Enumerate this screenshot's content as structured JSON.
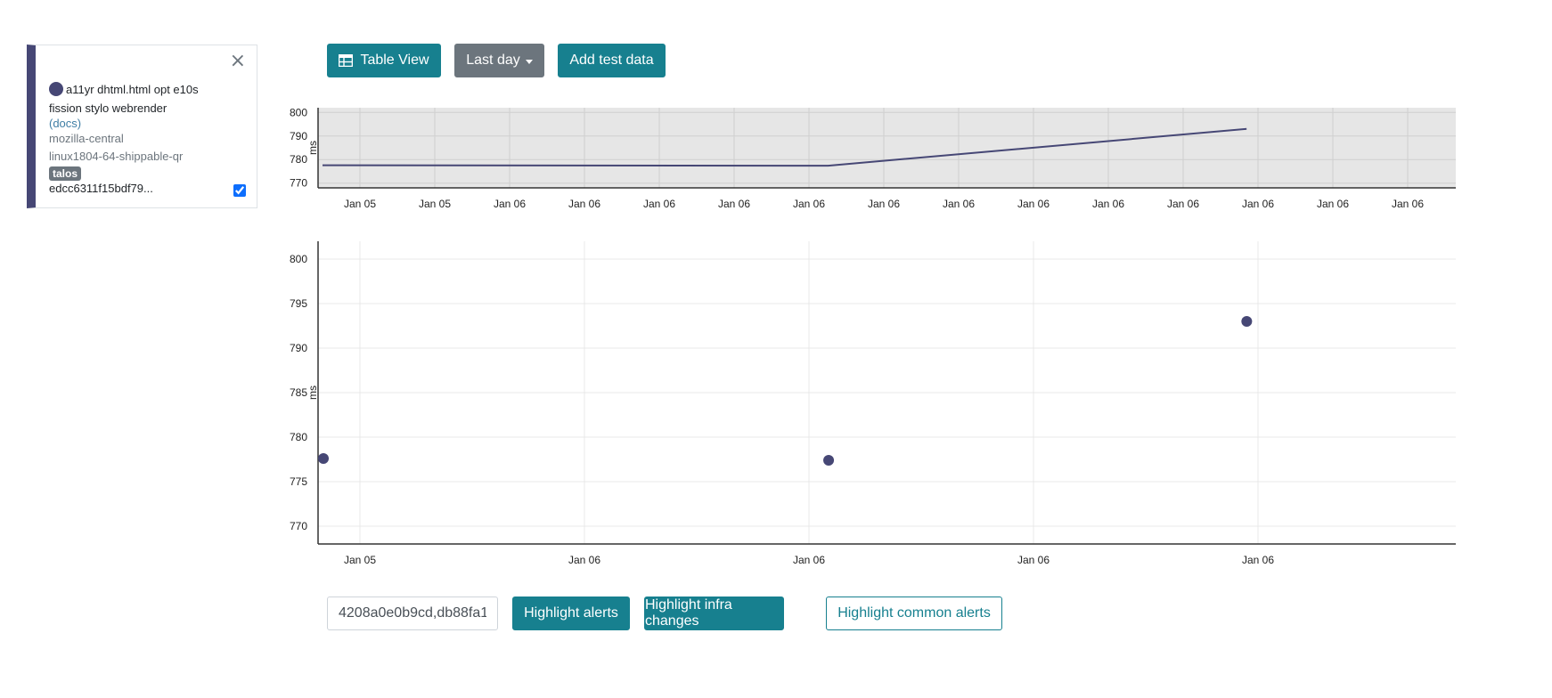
{
  "colors": {
    "series": "#464775",
    "teal": "#17808f",
    "gray": "#6c757d",
    "badge": "#6c757d"
  },
  "legend": {
    "close_icon": "×",
    "test_name": "a11yr dhtml.html opt e10s",
    "options": "fission stylo webrender",
    "docs_label": "(docs)",
    "repository": "mozilla-central",
    "platform": "linux1804-64-shippable-qr",
    "framework_badge": "talos",
    "signature": "edcc6311f15bdf79...",
    "checked": true
  },
  "toolbar": {
    "table_view_label": "Table View",
    "table_icon": "table-icon",
    "time_range_label": "Last day",
    "add_test_data_label": "Add test data"
  },
  "overview_chart": {
    "ylabel": "ms",
    "y_ticks": [
      770,
      780,
      790,
      800
    ],
    "ylim": [
      768,
      802
    ],
    "x_ticks": [
      "Jan 05",
      "Jan 05",
      "Jan 06",
      "Jan 06",
      "Jan 06",
      "Jan 06",
      "Jan 06",
      "Jan 06",
      "Jan 06",
      "Jan 06",
      "Jan 06",
      "Jan 06",
      "Jan 06",
      "Jan 06",
      "Jan 06"
    ]
  },
  "chart_data": {
    "type": "scatter",
    "ylabel": "ms",
    "ylim": [
      768,
      802
    ],
    "y_ticks": [
      770,
      775,
      780,
      785,
      790,
      795,
      800
    ],
    "x_ticks": [
      "Jan 05",
      "Jan 06",
      "Jan 06",
      "Jan 06",
      "Jan 06"
    ],
    "series": [
      {
        "points": [
          {
            "x": 0.0,
            "y": 777.6
          },
          {
            "x": 5.8,
            "y": 777.4
          },
          {
            "x": 10.6,
            "y": 793.0
          }
        ]
      }
    ],
    "x_range": [
      0,
      13
    ],
    "x_tick_positions": [
      0.5,
      3.075,
      5.65,
      8.225,
      10.8
    ],
    "grid": true
  },
  "bottom": {
    "revision_input_value": "4208a0e0b9cd,db88fa1",
    "highlight_alerts_label": "Highlight alerts",
    "highlight_infra_label": "Highlight infra changes",
    "highlight_common_label": "Highlight common alerts"
  }
}
